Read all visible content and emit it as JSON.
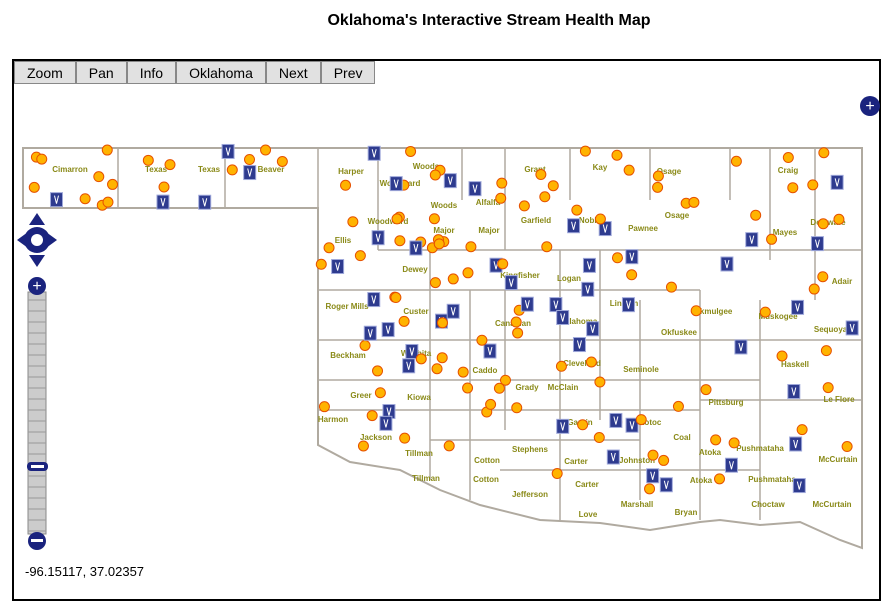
{
  "header": {
    "title": "Oklahoma's Interactive Stream Health Map"
  },
  "toolbar": {
    "buttons": [
      "Zoom",
      "Pan",
      "Info",
      "Oklahoma",
      "Next",
      "Prev"
    ]
  },
  "map": {
    "county_labels": [
      "Cimarron",
      "Texas",
      "Texas",
      "Beaver",
      "Harper",
      "Woods",
      "Woodward",
      "Grant",
      "Kay",
      "Osage",
      "Craig",
      "Alfalfa",
      "Woods",
      "Garfield",
      "Noble",
      "Pawnee",
      "Osage",
      "Delaware",
      "Woodward",
      "Major",
      "Major",
      "Mayes",
      "Ellis",
      "Dewey",
      "Kingfisher",
      "Logan",
      "Adair",
      "Roger Mills",
      "Custer",
      "Lincoln",
      "Okmulgee",
      "Muskogee",
      "Sequoyah",
      "Canadian",
      "Oklahoma",
      "Okfuskee",
      "Beckham",
      "Washita",
      "Cleveland",
      "Seminole",
      "Caddo",
      "Grady",
      "McClain",
      "Haskell",
      "Greer",
      "Kiowa",
      "Pittsburg",
      "Le Flore",
      "Pontotoc",
      "Harmon",
      "Garvin",
      "Coal",
      "Jackson",
      "Stephens",
      "Pushmataha",
      "Atoka",
      "Tillman",
      "Johnston",
      "Carter",
      "Cotton",
      "McCurtain",
      "Pushmataha",
      "Atoka",
      "Tillman",
      "Cotton",
      "Carter",
      "Jefferson",
      "Marshall",
      "Bryan",
      "Choctaw",
      "McCurtain",
      "Love"
    ],
    "coordinates": "-96.15117, 37.02357"
  }
}
